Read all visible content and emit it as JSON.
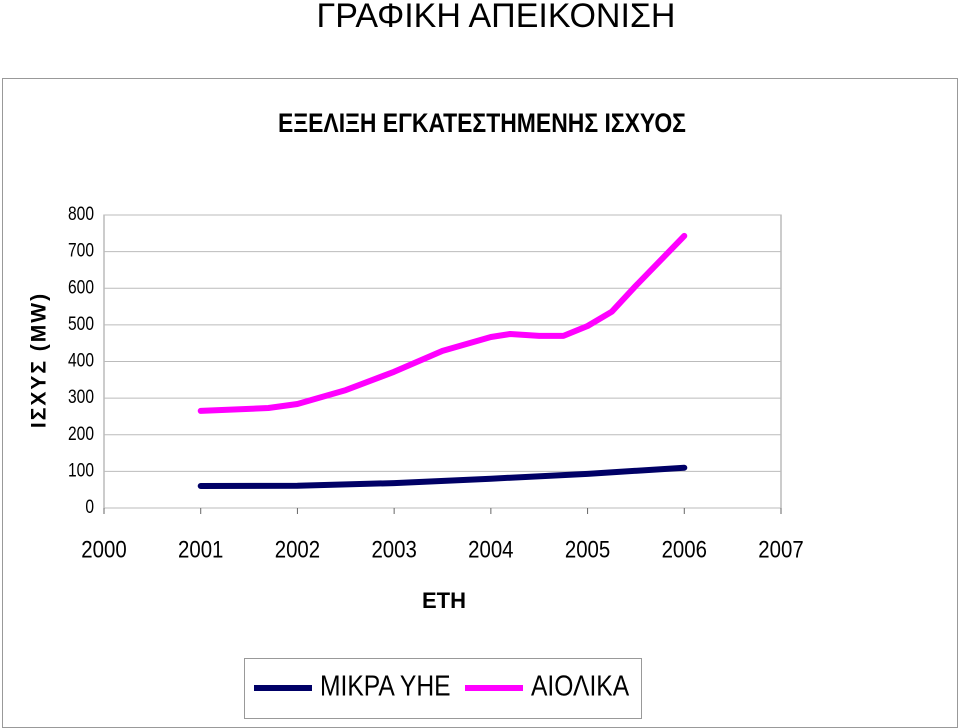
{
  "page_title": "ΓΡΑΦΙΚΗ  ΑΠΕΙΚΟΝΙΣΗ",
  "chart_data": {
    "type": "line",
    "title": "ΕΞΕΛΙΞΗ ΕΓΚΑΤΕΣΤΗΜΕΝΗΣ ΙΣΧΥΟΣ",
    "y_label": "ΙΣΧΥΣ (MW)",
    "x_label": "ΕΤΗ",
    "xlim": [
      2000,
      2007
    ],
    "xticks": [
      2000,
      2001,
      2002,
      2003,
      2004,
      2005,
      2006,
      2007
    ],
    "ylim": [
      0,
      800
    ],
    "yticks": [
      0,
      100,
      200,
      300,
      400,
      500,
      600,
      700,
      800
    ],
    "grid": true,
    "legend": "bottom",
    "series": [
      {
        "name": "ΜΙΚΡΑ ΥΗΕ",
        "color": "#000066",
        "x": [
          2001,
          2002,
          2003,
          2004,
          2005,
          2006
        ],
        "values": [
          60,
          61,
          68,
          80,
          93,
          110
        ]
      },
      {
        "name": "ΑΙΟΛΙΚΑ",
        "color": "#ff00ff",
        "x": [
          2001,
          2001.7,
          2002,
          2002.5,
          2003,
          2003.5,
          2004,
          2004.2,
          2004.5,
          2004.75,
          2005,
          2005.25,
          2005.5,
          2006
        ],
        "values": [
          265,
          273,
          284,
          322,
          372,
          429,
          467,
          475,
          470,
          470,
          497,
          536,
          607,
          743
        ]
      }
    ]
  }
}
